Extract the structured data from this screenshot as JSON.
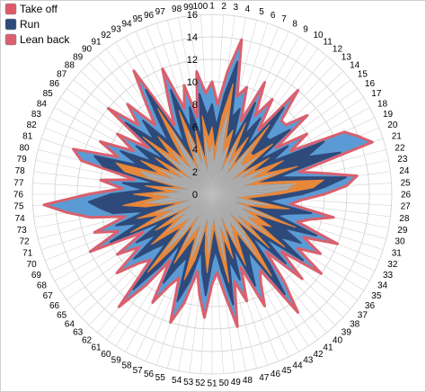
{
  "chart_data": {
    "type": "radar",
    "categories": [
      "1",
      "2",
      "3",
      "4",
      "5",
      "6",
      "7",
      "8",
      "9",
      "10",
      "11",
      "12",
      "13",
      "14",
      "15",
      "16",
      "17",
      "18",
      "19",
      "20",
      "21",
      "22",
      "23",
      "24",
      "25",
      "26",
      "27",
      "28",
      "29",
      "30",
      "31",
      "32",
      "33",
      "34",
      "35",
      "36",
      "37",
      "38",
      "39",
      "40",
      "41",
      "42",
      "43",
      "44",
      "45",
      "46",
      "47",
      "48",
      "49",
      "50",
      "51",
      "52",
      "53",
      "54",
      "55",
      "56",
      "57",
      "58",
      "59",
      "60",
      "61",
      "62",
      "63",
      "64",
      "65",
      "66",
      "67",
      "68",
      "69",
      "70",
      "71",
      "72",
      "73",
      "74",
      "75",
      "76",
      "77",
      "78",
      "79",
      "80",
      "81",
      "82",
      "83",
      "84",
      "85",
      "86",
      "87",
      "88",
      "89",
      "90",
      "91",
      "92",
      "93",
      "94",
      "95",
      "96",
      "97",
      "98",
      "99",
      "100"
    ],
    "rlim": [
      0,
      16
    ],
    "r_ticks": [
      "0",
      "2",
      "4",
      "6",
      "8",
      "10",
      "12",
      "14",
      "16"
    ],
    "grid": true,
    "legend_position": "top-left",
    "inner_fill_color": "#a6a6a6",
    "series": [
      {
        "name": "Take off",
        "color": "#e8873a",
        "values": [
          6,
          4,
          7,
          10,
          5,
          6,
          3,
          7,
          4,
          6,
          3,
          8,
          5,
          5,
          7,
          3,
          6,
          4,
          7,
          5,
          8,
          4,
          6,
          10,
          9,
          6,
          4,
          3,
          7,
          5,
          3,
          8,
          4,
          6,
          5,
          8,
          4,
          7,
          3,
          6,
          9,
          4,
          5,
          7,
          3,
          6,
          4,
          8,
          5,
          3,
          4,
          7,
          5,
          3,
          6,
          8,
          4,
          5,
          7,
          3,
          6,
          9,
          4,
          5,
          7,
          4,
          6,
          3,
          8,
          5,
          7,
          3,
          6,
          8,
          5,
          7,
          4,
          6,
          3,
          8,
          9,
          5,
          7,
          4,
          6,
          3,
          8,
          5,
          7,
          4,
          6,
          9,
          3,
          5,
          8,
          4,
          6,
          3,
          7,
          5
        ]
      },
      {
        "name": "Run",
        "color": "#2e4a7a",
        "values": [
          8,
          6,
          9,
          12,
          7,
          8,
          5,
          9,
          6,
          8,
          5,
          10,
          7,
          7,
          9,
          5,
          8,
          6,
          11,
          9,
          12,
          6,
          8,
          12,
          10,
          8,
          6,
          5,
          9,
          7,
          6,
          10,
          7,
          9,
          7,
          10,
          6,
          9,
          5,
          8,
          11,
          6,
          7,
          9,
          5,
          8,
          6,
          10,
          7,
          5,
          6,
          9,
          7,
          5,
          8,
          10,
          6,
          7,
          9,
          5,
          8,
          11,
          6,
          7,
          9,
          6,
          8,
          5,
          10,
          7,
          9,
          6,
          9,
          10,
          11,
          9,
          6,
          8,
          5,
          10,
          11,
          7,
          9,
          6,
          8,
          5,
          10,
          7,
          9,
          6,
          8,
          11,
          5,
          7,
          10,
          6,
          8,
          5,
          9,
          7
        ]
      },
      {
        "name": "Lean back",
        "color": "#d9606e",
        "values": [
          10,
          8,
          11,
          14,
          9,
          10,
          7,
          11,
          8,
          10,
          7,
          12,
          9,
          9,
          11,
          7,
          10,
          8,
          13,
          14,
          15,
          8,
          10,
          13,
          12,
          10,
          8,
          7,
          11,
          9,
          8,
          12,
          9,
          11,
          9,
          12,
          8,
          11,
          7,
          10,
          13,
          8,
          9,
          11,
          7,
          10,
          8,
          12,
          9,
          7,
          8,
          11,
          9,
          7,
          10,
          12,
          8,
          9,
          11,
          7,
          10,
          13,
          8,
          9,
          11,
          8,
          10,
          7,
          12,
          9,
          11,
          8,
          11,
          13,
          15,
          11,
          8,
          10,
          7,
          12,
          13,
          9,
          11,
          8,
          10,
          7,
          12,
          9,
          11,
          8,
          10,
          13,
          7,
          9,
          12,
          8,
          10,
          7,
          11,
          9
        ]
      }
    ]
  },
  "legend": {
    "items": [
      {
        "label": "Take off",
        "color": "#e05a6a"
      },
      {
        "label": "Run",
        "color": "#2e4a7a"
      },
      {
        "label": "Lean back",
        "color": "#d9606e"
      }
    ]
  }
}
